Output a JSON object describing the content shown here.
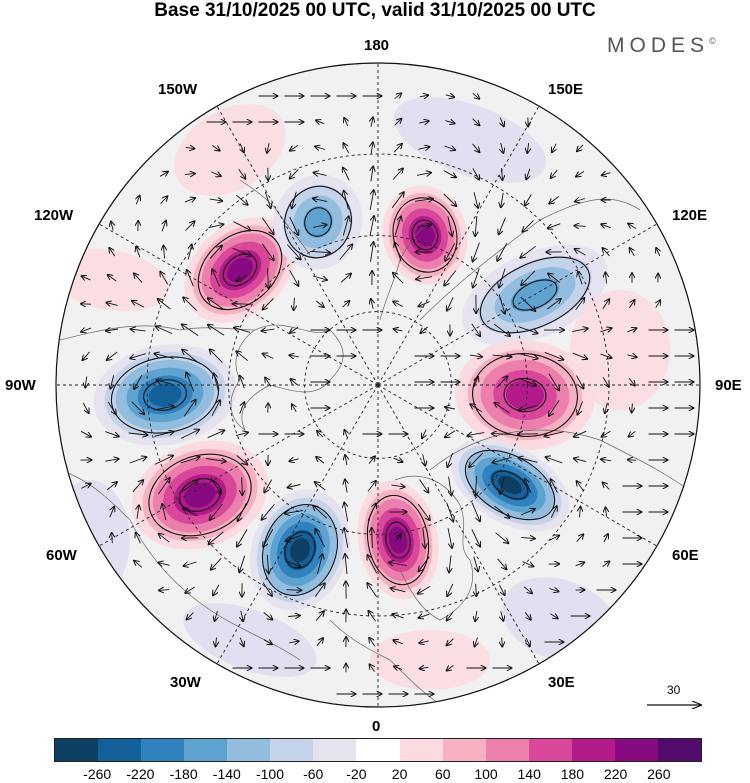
{
  "title": "Base 31/10/2025 00 UTC, valid 31/10/2025 00 UTC",
  "brand": "MODES",
  "brand_mark": "©",
  "longitude_labels": {
    "top": "180",
    "bottom": "0",
    "left": "90W",
    "right": "90E",
    "upper_left_1": "150W",
    "upper_left_2": "120W",
    "upper_right_1": "150E",
    "upper_right_2": "120E",
    "lower_left_1": "60W",
    "lower_left_2": "30W",
    "lower_right_1": "60E",
    "lower_right_2": "30E"
  },
  "reference_vector": {
    "value": "30"
  },
  "colorbar": {
    "colors": [
      "#0d3f63",
      "#14609a",
      "#2f82bd",
      "#5ea2d0",
      "#93bddf",
      "#c5d3ea",
      "#e5e3f0",
      "#ffffff",
      "#fbdbdf",
      "#f6b2c2",
      "#ec7fac",
      "#d9479a",
      "#b31b8a",
      "#880a80",
      "#520c6e"
    ],
    "ticks": [
      "-260",
      "-220",
      "-180",
      "-140",
      "-100",
      "-60",
      "-20",
      "20",
      "60",
      "100",
      "140",
      "180",
      "220",
      "260"
    ]
  },
  "map": {
    "projection": "north polar stereographic",
    "latitude_circles": [
      30,
      45,
      60,
      75
    ],
    "anomaly_centers": [
      {
        "name": "pos-150W-120W",
        "value": 220
      },
      {
        "name": "neg-165W",
        "value": -140
      },
      {
        "name": "pos-165E",
        "value": 220
      },
      {
        "name": "neg-120E",
        "value": -140
      },
      {
        "name": "pos-90E",
        "value": 200
      },
      {
        "name": "neg-60E",
        "value": -260
      },
      {
        "name": "pos-15W",
        "value": 220
      },
      {
        "name": "neg-40W",
        "value": -260
      },
      {
        "name": "pos-70W",
        "value": 220
      },
      {
        "name": "neg-95W",
        "value": -220
      }
    ]
  }
}
